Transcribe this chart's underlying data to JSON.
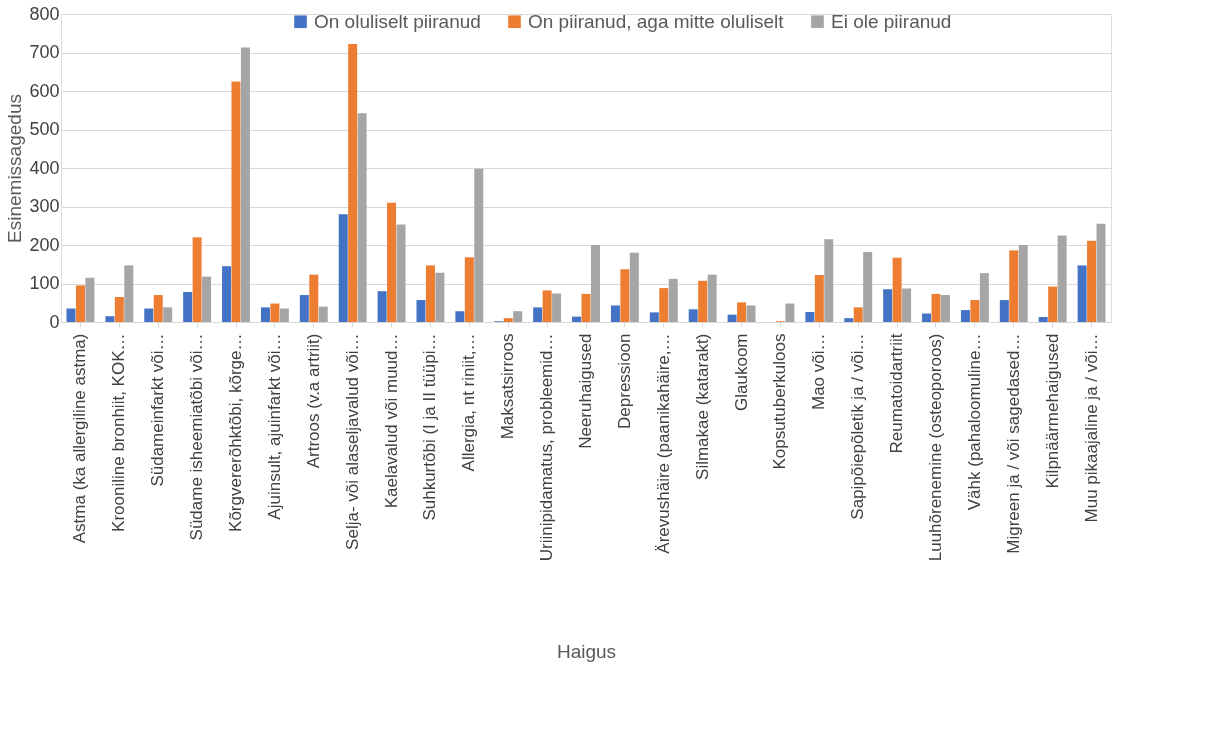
{
  "chart_data": {
    "type": "bar",
    "xlabel": "Haigus",
    "ylabel": "Esinemissagedus",
    "categories": [
      "Astma (ka allergiline astma)",
      "Krooniline bronhiit, KOK…",
      "Südameinfarkt või…",
      "Südame isheemiatõbi või…",
      "Kõrgvererõhktõbi, kõrge…",
      "Ajuinsult, ajuinfarkt või…",
      "Artroos (v.a artriit)",
      "Selja- või alaseljavalud või…",
      "Kaelavalud või muud…",
      "Suhkurtõbi (I ja II tüüpi…",
      "Allergia, nt riniit,…",
      "Maksatsirroos",
      "Uriinipidamatus, probleemid…",
      "Neeruhaigused",
      "Depressioon",
      "Ärevushäire (paanikahäire,…",
      "Silmakae (katarakt)",
      "Glaukoom",
      "Kopsutuberkuloos",
      "Mao või…",
      "Sapipõiepõletik ja / või…",
      "Reumatoidartriit",
      "Luuhõrenemine (osteoporoos)",
      "Vähk (pahaloomuline…",
      "Migreen ja / või sagedased…",
      "Kilpnäärmehaigused",
      "Muu pikaajaline ja / või…"
    ],
    "series": [
      {
        "name": "On oluliselt piiranud",
        "color": "#4472c4",
        "values": [
          35,
          15,
          35,
          78,
          145,
          38,
          70,
          280,
          80,
          57,
          28,
          2,
          38,
          14,
          43,
          25,
          33,
          19,
          0,
          26,
          10,
          85,
          22,
          31,
          57,
          13,
          147
        ]
      },
      {
        "name": "On piiranud, aga mitte oluliselt",
        "color": "#ed7d31",
        "values": [
          95,
          65,
          70,
          220,
          625,
          48,
          123,
          722,
          310,
          147,
          168,
          10,
          82,
          73,
          137,
          88,
          107,
          51,
          2,
          122,
          38,
          167,
          73,
          57,
          186,
          92,
          211
        ]
      },
      {
        "name": "Ei ole piiranud",
        "color": "#a5a5a5",
        "values": [
          115,
          147,
          38,
          118,
          713,
          35,
          40,
          542,
          253,
          128,
          398,
          28,
          74,
          200,
          180,
          112,
          123,
          43,
          48,
          215,
          182,
          87,
          70,
          127,
          200,
          225,
          255
        ]
      }
    ],
    "ylim": [
      0,
      800
    ],
    "yticks": [
      0,
      100,
      200,
      300,
      400,
      500,
      600,
      700,
      800
    ],
    "grid": "y",
    "legend": "top right"
  }
}
